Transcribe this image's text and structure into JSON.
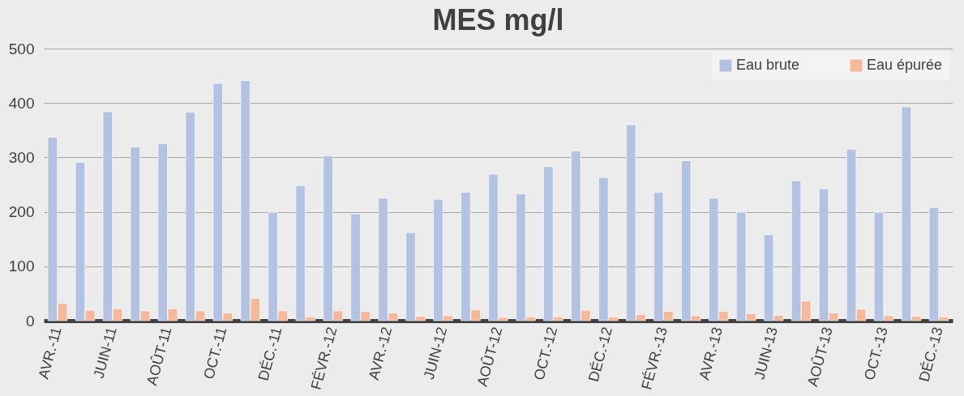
{
  "chart_data": {
    "type": "bar",
    "title": "MES mg/l",
    "categories": [
      "AVR.-11",
      null,
      "JUIN-11",
      null,
      "AOÛT-11",
      null,
      "OCT.-11",
      null,
      "DÉC.-11",
      null,
      "FÉVR.-12",
      null,
      "AVR.-12",
      null,
      "JUIN-12",
      null,
      "AOÛT-12",
      null,
      "OCT.-12",
      null,
      "DÉC.-12",
      null,
      "FÉVR.-13",
      null,
      "AVR.-13",
      null,
      "JUIN-13",
      null,
      "AOÛT-13",
      null,
      "OCT.-13",
      null,
      "DÉC.-13"
    ],
    "series": [
      {
        "name": "Eau brute",
        "color": "#b4c2e2",
        "values": [
          337,
          291,
          384,
          319,
          325,
          383,
          436,
          441,
          199,
          248,
          303,
          196,
          225,
          162,
          223,
          236,
          269,
          233,
          283,
          312,
          263,
          360,
          236,
          294,
          225,
          199,
          158,
          257,
          242,
          315,
          199,
          393,
          208
        ]
      },
      {
        "name": "Eau épurée",
        "color": "#f6b89b",
        "values": [
          32,
          19,
          22,
          18,
          22,
          18,
          14,
          41,
          18,
          7,
          18,
          17,
          14,
          8,
          9,
          20,
          6,
          7,
          7,
          19,
          7,
          11,
          17,
          9,
          17,
          13,
          10,
          36,
          14,
          21,
          9,
          8,
          7
        ]
      }
    ],
    "ylim": [
      0,
      500
    ],
    "yticks": [
      0,
      100,
      200,
      300,
      400,
      500
    ],
    "grid": "y",
    "legend": "top right"
  }
}
